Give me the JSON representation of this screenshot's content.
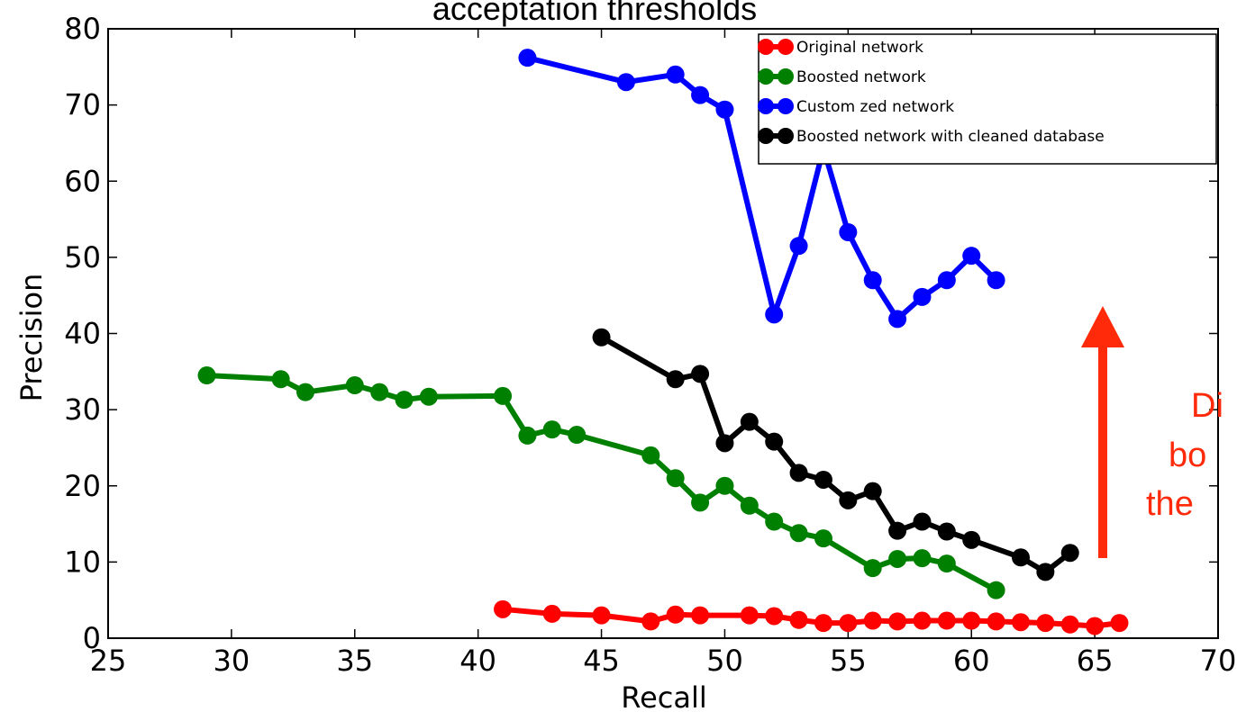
{
  "chart_data": {
    "type": "line",
    "title": "acceptation thresholds",
    "xlabel": "Recall",
    "ylabel": "Precision",
    "xlim": [
      25,
      70
    ],
    "ylim": [
      0,
      80
    ],
    "xticks": [
      "25",
      "30",
      "35",
      "40",
      "45",
      "50",
      "55",
      "60",
      "65",
      "70"
    ],
    "yticks": [
      "0",
      "10",
      "20",
      "30",
      "40",
      "50",
      "60",
      "70",
      "80"
    ],
    "grid": false,
    "legend_position": "top-right",
    "series": [
      {
        "name": "Original network",
        "color": "#ff0000",
        "x": [
          41,
          43,
          45,
          47,
          48,
          49,
          51,
          52,
          53,
          54,
          55,
          56,
          57,
          58,
          59,
          60,
          61,
          62,
          63,
          64,
          65,
          66
        ],
        "y": [
          3.8,
          3.2,
          3.0,
          2.2,
          3.1,
          3.0,
          3.0,
          2.9,
          2.4,
          2.0,
          2.0,
          2.3,
          2.2,
          2.3,
          2.3,
          2.3,
          2.2,
          2.1,
          2.0,
          1.8,
          1.6,
          2.0
        ]
      },
      {
        "name": "Boosted network",
        "color": "#008000",
        "x": [
          29,
          32,
          33,
          35,
          36,
          37,
          38,
          41,
          42,
          43,
          44,
          47,
          48,
          49,
          50,
          51,
          52,
          53,
          54,
          56,
          57,
          58,
          59,
          61
        ],
        "y": [
          34.5,
          34.0,
          32.3,
          33.2,
          32.3,
          31.3,
          31.7,
          31.8,
          26.6,
          27.4,
          26.7,
          24.0,
          21.0,
          17.8,
          20.0,
          17.4,
          15.3,
          13.8,
          13.1,
          9.2,
          10.4,
          10.5,
          9.8,
          6.3
        ]
      },
      {
        "name": "Custom zed network",
        "color": "#0000ff",
        "x": [
          42,
          46,
          48,
          49,
          50,
          52,
          53,
          54,
          55,
          56,
          57,
          58,
          59,
          60,
          61
        ],
        "y": [
          76.2,
          73.0,
          74.0,
          71.3,
          69.4,
          42.5,
          51.5,
          64.3,
          53.3,
          47.0,
          41.9,
          44.8,
          47.0,
          50.2,
          47.0
        ]
      },
      {
        "name": "Boosted network with cleaned database",
        "color": "#000000",
        "x": [
          45,
          48,
          49,
          50,
          51,
          52,
          53,
          54,
          55,
          56,
          57,
          58,
          59,
          60,
          62,
          63,
          64
        ],
        "y": [
          39.5,
          34.0,
          34.7,
          25.6,
          28.4,
          25.8,
          21.7,
          20.8,
          18.1,
          19.3,
          14.1,
          15.3,
          14.0,
          12.9,
          10.6,
          8.7,
          11.2
        ]
      }
    ],
    "annotation": {
      "lines": [
        "Di",
        "bo",
        "the"
      ],
      "color": "#ff2a0a"
    }
  }
}
